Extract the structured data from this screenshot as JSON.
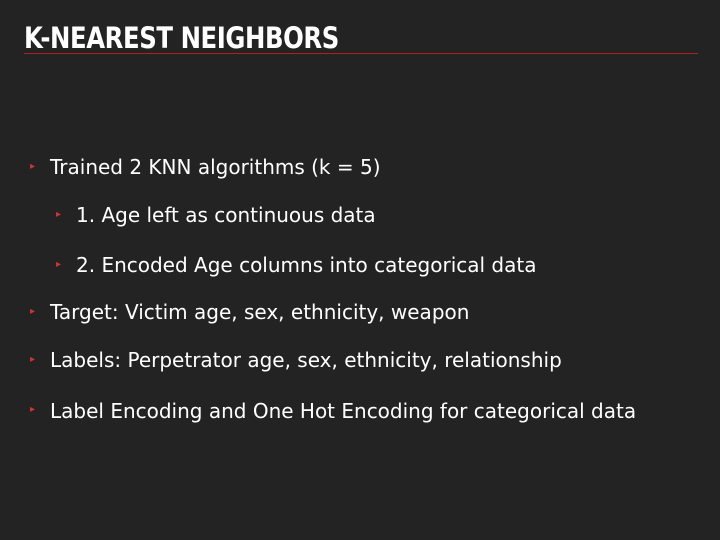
{
  "slide": {
    "title": "K-NEAREST NEIGHBORS",
    "colors": {
      "background": "#232323",
      "accent": "#a82424",
      "text": "#ffffff"
    },
    "bullets": [
      {
        "level": 1,
        "text": "Trained 2 KNN algorithms (k = 5)"
      },
      {
        "level": 2,
        "text": "1. Age left as continuous data"
      },
      {
        "level": 2,
        "text": "2. Encoded Age columns into categorical data"
      },
      {
        "level": 1,
        "text": "Target: Victim age, sex, ethnicity, weapon"
      },
      {
        "level": 1,
        "text": "Labels: Perpetrator age, sex, ethnicity, relationship"
      },
      {
        "level": 1,
        "text": "Label Encoding and One Hot Encoding for categorical data"
      }
    ],
    "bullet_marker": "▸"
  }
}
